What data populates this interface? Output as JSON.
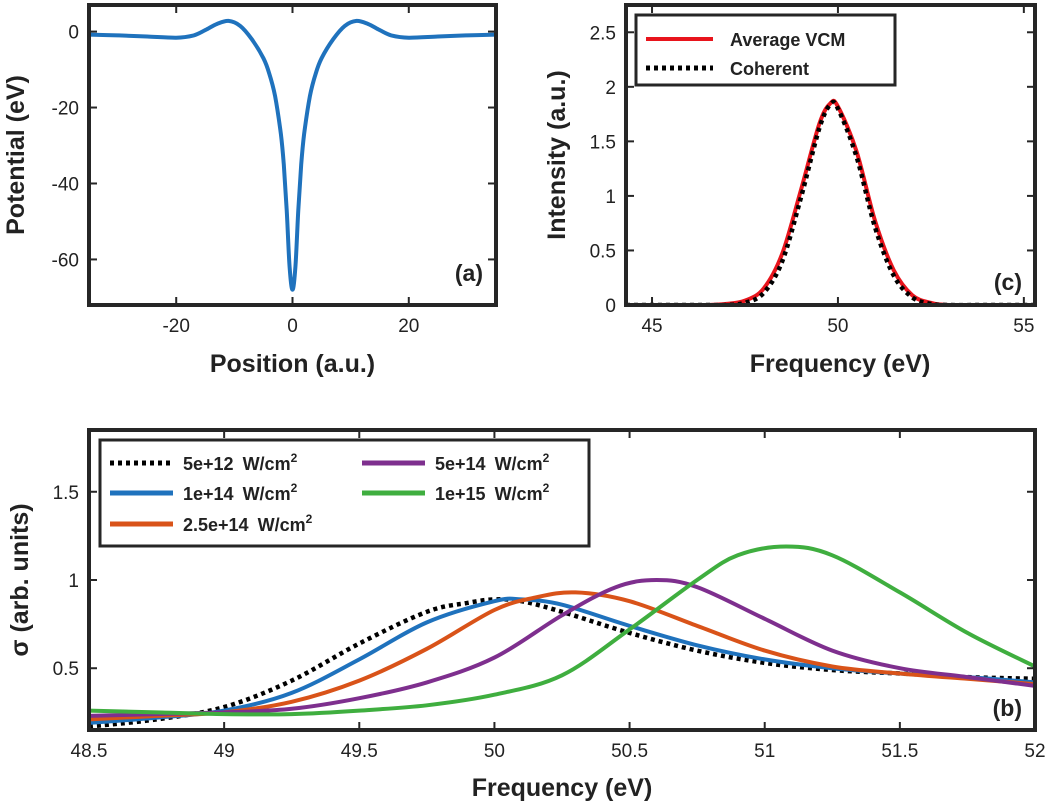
{
  "chart_data": [
    {
      "id": "a",
      "type": "line",
      "panel_label": "(a)",
      "title": "",
      "xlabel": "Position  (a.u.)",
      "ylabel": "Potential  (eV)",
      "xlim": [
        -35,
        35
      ],
      "ylim": [
        -72,
        7
      ],
      "xticks": [
        -20,
        0,
        20
      ],
      "xtick_labels": [
        "-20",
        "0",
        "20"
      ],
      "yticks": [
        0,
        -20,
        -40,
        -60
      ],
      "ytick_labels": [
        "0",
        "-20",
        "-40",
        "-60"
      ],
      "series": [
        {
          "name": "potential",
          "color": "#1f72bd",
          "style": "solid",
          "x": [
            -35,
            -30,
            -25,
            -20,
            -17,
            -15,
            -13,
            -11,
            -9,
            -7,
            -5,
            -4,
            -3,
            -2,
            -1.5,
            -1,
            -0.5,
            0,
            0.5,
            1,
            1.5,
            2,
            3,
            4,
            5,
            7,
            9,
            11,
            13,
            15,
            17,
            20,
            25,
            30,
            35
          ],
          "y": [
            -0.8,
            -1.0,
            -1.3,
            -1.6,
            -1.0,
            0.4,
            2.0,
            2.8,
            1.5,
            -2.0,
            -7.0,
            -11.0,
            -17.0,
            -27.0,
            -35.0,
            -47.0,
            -62.0,
            -68.0,
            -62.0,
            -47.0,
            -35.0,
            -27.0,
            -17.0,
            -11.0,
            -7.0,
            -2.0,
            1.5,
            2.8,
            2.0,
            0.4,
            -1.0,
            -1.6,
            -1.3,
            -1.0,
            -0.8
          ]
        }
      ]
    },
    {
      "id": "c",
      "type": "line",
      "panel_label": "(c)",
      "title": "",
      "xlabel": "Frequency  (eV)",
      "ylabel": "Intensity  (a.u.)",
      "xlim": [
        44.3,
        55.3
      ],
      "ylim": [
        0,
        2.75
      ],
      "xticks": [
        45,
        50,
        55
      ],
      "xtick_labels": [
        "45",
        "50",
        "55"
      ],
      "yticks": [
        0,
        0.5,
        1,
        1.5,
        2,
        2.5
      ],
      "ytick_labels": [
        "0",
        "0.5",
        "1",
        "1.5",
        "2",
        "2.5"
      ],
      "legend_position": "top-left",
      "series": [
        {
          "name": "Average  VCM",
          "color": "#e8141c",
          "style": "solid",
          "x": [
            44.3,
            45,
            46,
            46.5,
            47,
            47.5,
            48,
            48.5,
            49,
            49.5,
            49.8,
            50,
            50.5,
            51,
            51.5,
            52,
            52.5,
            53,
            54,
            55.3
          ],
          "y": [
            0.0,
            0.0,
            0.0,
            0.0,
            0.01,
            0.04,
            0.15,
            0.47,
            1.05,
            1.66,
            1.85,
            1.82,
            1.41,
            0.77,
            0.32,
            0.09,
            0.02,
            0.0,
            0.0,
            0.0
          ]
        },
        {
          "name": "Coherent",
          "color": "#000000",
          "style": "dotted",
          "x": [
            44.3,
            45,
            46,
            46.5,
            47,
            47.5,
            48,
            48.5,
            49,
            49.5,
            49.8,
            50,
            50.5,
            51,
            51.5,
            52,
            52.5,
            53,
            54,
            55.3
          ],
          "y": [
            0.0,
            0.0,
            0.0,
            0.0,
            0.0,
            0.02,
            0.11,
            0.4,
            0.98,
            1.62,
            1.84,
            1.8,
            1.36,
            0.71,
            0.27,
            0.07,
            0.01,
            0.0,
            0.0,
            0.0
          ]
        }
      ]
    },
    {
      "id": "b",
      "type": "line",
      "panel_label": "(b)",
      "title": "",
      "xlabel": "Frequency  (eV)",
      "ylabel": "σ  (arb.  units)",
      "xlim": [
        48.5,
        52
      ],
      "ylim": [
        0.15,
        1.85
      ],
      "xticks": [
        48.5,
        49,
        49.5,
        50,
        50.5,
        51,
        51.5,
        52
      ],
      "xtick_labels": [
        "48.5",
        "49",
        "49.5",
        "50",
        "50.5",
        "51",
        "51.5",
        "52"
      ],
      "yticks": [
        0.5,
        1,
        1.5
      ],
      "ytick_labels": [
        "0.5",
        "1",
        "1.5"
      ],
      "legend_position": "top-left",
      "legend_unit_base": "W/cm",
      "legend_unit_exp": "2",
      "series": [
        {
          "name": "5e+12",
          "color": "#000000",
          "style": "dotted",
          "x": [
            48.5,
            48.75,
            49,
            49.25,
            49.5,
            49.75,
            49.9,
            50,
            50.1,
            50.25,
            50.5,
            50.75,
            51,
            51.25,
            51.5,
            51.75,
            52
          ],
          "y": [
            0.17,
            0.21,
            0.28,
            0.43,
            0.64,
            0.82,
            0.87,
            0.89,
            0.88,
            0.82,
            0.7,
            0.6,
            0.53,
            0.49,
            0.47,
            0.45,
            0.44
          ]
        },
        {
          "name": "1e+14",
          "color": "#1f72bd",
          "style": "solid",
          "x": [
            48.5,
            48.75,
            49,
            49.25,
            49.5,
            49.75,
            50,
            50.1,
            50.25,
            50.5,
            50.75,
            51,
            51.25,
            51.5,
            51.75,
            52
          ],
          "y": [
            0.19,
            0.22,
            0.26,
            0.36,
            0.55,
            0.76,
            0.88,
            0.89,
            0.86,
            0.74,
            0.63,
            0.55,
            0.5,
            0.47,
            0.45,
            0.42
          ]
        },
        {
          "name": "2.5e+14",
          "color": "#d95319",
          "style": "solid",
          "x": [
            48.5,
            48.75,
            49,
            49.25,
            49.5,
            49.75,
            50,
            50.15,
            50.3,
            50.5,
            50.75,
            51,
            51.25,
            51.5,
            51.75,
            52
          ],
          "y": [
            0.21,
            0.23,
            0.25,
            0.31,
            0.43,
            0.61,
            0.83,
            0.9,
            0.93,
            0.88,
            0.74,
            0.6,
            0.51,
            0.47,
            0.44,
            0.41
          ]
        },
        {
          "name": "5e+14",
          "color": "#7e2f8e",
          "style": "solid",
          "x": [
            48.5,
            48.75,
            49,
            49.25,
            49.5,
            49.75,
            50,
            50.25,
            50.45,
            50.6,
            50.75,
            51,
            51.25,
            51.5,
            51.75,
            52
          ],
          "y": [
            0.23,
            0.24,
            0.25,
            0.27,
            0.33,
            0.42,
            0.56,
            0.8,
            0.96,
            1.0,
            0.96,
            0.78,
            0.6,
            0.5,
            0.45,
            0.4
          ]
        },
        {
          "name": "1e+15",
          "color": "#3fae3f",
          "style": "solid",
          "x": [
            48.5,
            48.75,
            49,
            49.25,
            49.5,
            49.75,
            50,
            50.25,
            50.5,
            50.75,
            50.9,
            51.08,
            51.25,
            51.5,
            51.75,
            52
          ],
          "y": [
            0.26,
            0.25,
            0.24,
            0.24,
            0.26,
            0.29,
            0.35,
            0.46,
            0.72,
            1.0,
            1.14,
            1.19,
            1.14,
            0.93,
            0.7,
            0.51
          ]
        }
      ]
    }
  ]
}
